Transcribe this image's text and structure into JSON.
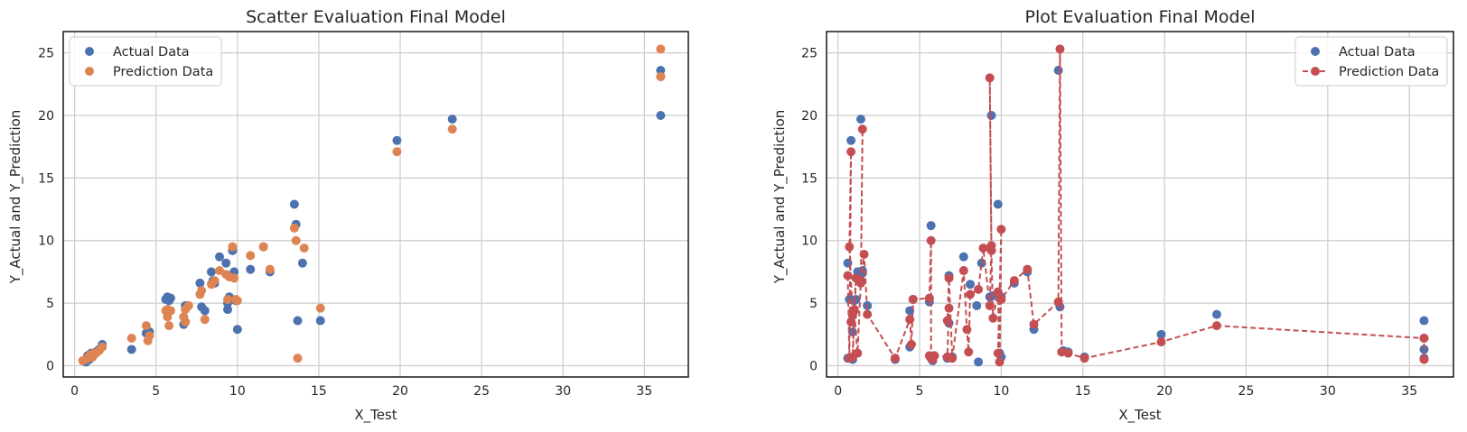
{
  "colors": {
    "actual_scatter": "#4c72b0",
    "prediction_scatter": "#dd8452",
    "prediction_line": "#c44e52",
    "grid": "#cccccc",
    "frame": "#262626"
  },
  "chart_data": [
    {
      "type": "scatter",
      "title": "Scatter Evaluation Final Model",
      "xlabel": "X_Test",
      "ylabel": "Y_Actual and Y_Prediction",
      "xlim": [
        -0.7,
        37.7
      ],
      "ylim": [
        -0.9,
        26.7
      ],
      "xticks": [
        0,
        5,
        10,
        15,
        20,
        25,
        30,
        35
      ],
      "yticks": [
        0,
        5,
        10,
        15,
        20,
        25
      ],
      "grid": true,
      "legend_position": "top-left",
      "series": [
        {
          "name": "Actual Data",
          "style": "scatter",
          "x": [
            0.6,
            0.7,
            0.8,
            0.9,
            1.0,
            1.1,
            1.2,
            1.3,
            1.5,
            1.7,
            3.5,
            4.4,
            4.6,
            5.6,
            5.7,
            5.8,
            5.9,
            6.7,
            6.8,
            6.8,
            7.7,
            7.8,
            8.0,
            8.4,
            8.5,
            8.6,
            8.9,
            9.3,
            9.4,
            9.4,
            9.5,
            9.7,
            9.8,
            9.9,
            10.0,
            10.8,
            11.6,
            12.0,
            13.5,
            13.6,
            13.7,
            14.0,
            15.1,
            19.8,
            23.2,
            36.0,
            36.0,
            36.0
          ],
          "values": [
            0.4,
            0.3,
            0.8,
            0.5,
            1.0,
            0.7,
            0.9,
            1.1,
            1.3,
            1.7,
            1.3,
            2.6,
            2.7,
            5.3,
            5.5,
            5.2,
            5.4,
            3.3,
            3.5,
            4.8,
            6.6,
            4.7,
            4.4,
            7.5,
            6.8,
            6.6,
            8.7,
            8.2,
            4.5,
            5.0,
            5.5,
            9.2,
            7.5,
            5.2,
            2.9,
            7.7,
            9.5,
            7.5,
            12.9,
            11.3,
            3.6,
            8.2,
            3.6,
            18.0,
            19.7,
            23.6,
            23.1,
            20.0
          ]
        },
        {
          "name": "Prediction Data",
          "style": "scatter",
          "x": [
            0.5,
            0.7,
            0.8,
            0.9,
            1.0,
            1.1,
            1.2,
            1.3,
            1.5,
            1.7,
            3.5,
            4.4,
            4.5,
            4.6,
            5.6,
            5.7,
            5.7,
            5.8,
            5.9,
            6.7,
            6.8,
            6.8,
            7.0,
            7.7,
            7.8,
            8.0,
            8.4,
            8.6,
            8.9,
            9.3,
            9.4,
            9.5,
            9.7,
            9.8,
            9.9,
            10.0,
            10.8,
            11.6,
            12.0,
            13.5,
            13.6,
            13.7,
            14.1,
            15.1,
            19.8,
            23.2,
            36.0,
            36.0
          ],
          "values": [
            0.4,
            0.5,
            0.6,
            0.8,
            0.9,
            0.7,
            1.0,
            1.0,
            1.2,
            1.5,
            2.2,
            3.2,
            2.0,
            2.4,
            4.4,
            3.9,
            4.5,
            3.2,
            4.4,
            3.9,
            4.5,
            3.5,
            4.8,
            5.7,
            6.0,
            3.7,
            6.5,
            6.8,
            7.6,
            7.3,
            5.3,
            7.1,
            9.5,
            7.0,
            5.3,
            5.2,
            8.8,
            9.5,
            7.7,
            11.0,
            10.0,
            0.6,
            9.4,
            4.6,
            17.1,
            18.9,
            25.3,
            23.1
          ]
        }
      ]
    },
    {
      "type": "line",
      "title": "Plot Evaluation Final Model",
      "xlabel": "X_Test",
      "ylabel": "Y_Actual and Y_Prediction",
      "xlim": [
        -0.7,
        37.7
      ],
      "ylim": [
        -0.9,
        26.7
      ],
      "xticks": [
        0,
        5,
        10,
        15,
        20,
        25,
        30,
        35
      ],
      "yticks": [
        0,
        5,
        10,
        15,
        20,
        25
      ],
      "grid": true,
      "legend_position": "top-right",
      "series": [
        {
          "name": "Actual Data",
          "style": "scatter",
          "x": [
            0.6,
            0.6,
            0.7,
            0.8,
            0.9,
            0.9,
            1.0,
            1.1,
            1.2,
            1.4,
            1.5,
            1.5,
            1.8,
            3.5,
            4.4,
            4.4,
            4.6,
            5.6,
            5.7,
            5.8,
            5.9,
            6.7,
            6.8,
            6.8,
            7.0,
            7.7,
            8.1,
            8.5,
            8.6,
            8.8,
            9.3,
            9.4,
            9.5,
            9.8,
            9.9,
            10.0,
            10.0,
            10.8,
            11.6,
            12.0,
            13.5,
            13.6,
            13.8,
            14.1,
            15.1,
            19.8,
            23.2,
            35.9,
            35.9,
            35.9
          ],
          "values": [
            0.6,
            8.2,
            5.3,
            18.0,
            0.5,
            2.7,
            5.2,
            5.3,
            7.5,
            19.7,
            7.6,
            7.4,
            4.8,
            0.5,
            4.4,
            1.5,
            5.3,
            5.1,
            11.2,
            0.4,
            0.8,
            0.6,
            7.2,
            3.4,
            0.7,
            8.7,
            6.5,
            4.8,
            0.3,
            8.2,
            5.5,
            20.0,
            5.6,
            12.9,
            1.0,
            0.7,
            5.5,
            6.6,
            7.5,
            2.9,
            23.6,
            4.7,
            1.2,
            1.1,
            0.7,
            2.5,
            4.1,
            3.6,
            1.3,
            0.6
          ]
        },
        {
          "name": "Prediction Data",
          "style": "dashed-line-markers",
          "x": [
            0.6,
            0.7,
            0.8,
            0.7,
            0.9,
            0.8,
            1.0,
            0.9,
            1.1,
            1.0,
            1.2,
            1.4,
            1.5,
            1.4,
            1.6,
            1.8,
            3.5,
            4.4,
            4.5,
            4.6,
            5.6,
            5.7,
            5.7,
            5.6,
            5.8,
            5.9,
            6.7,
            6.8,
            6.7,
            6.8,
            7.0,
            7.7,
            7.9,
            8.0,
            8.1,
            8.6,
            8.9,
            9.3,
            9.4,
            9.3,
            9.4,
            9.5,
            9.8,
            9.9,
            10.0,
            9.8,
            10.0,
            10.8,
            11.6,
            12.0,
            13.5,
            13.6,
            13.7,
            14.1,
            15.1,
            19.8,
            23.2,
            35.9,
            35.9,
            35.9
          ],
          "values": [
            7.2,
            0.6,
            17.1,
            9.5,
            4.0,
            3.5,
            4.5,
            0.7,
            7.0,
            4.4,
            1.0,
            6.8,
            18.9,
            6.6,
            8.9,
            4.1,
            0.6,
            3.7,
            1.7,
            5.3,
            5.4,
            10.0,
            0.6,
            0.8,
            0.5,
            0.8,
            0.7,
            4.6,
            3.6,
            7.0,
            0.6,
            7.6,
            2.9,
            1.1,
            5.7,
            6.1,
            9.4,
            4.8,
            9.6,
            23.0,
            9.2,
            3.8,
            5.9,
            0.3,
            10.9,
            1.0,
            5.3,
            6.8,
            7.7,
            3.3,
            5.1,
            25.3,
            1.1,
            1.0,
            0.6,
            1.9,
            3.2,
            2.2,
            0.5,
            2.2
          ]
        }
      ]
    }
  ]
}
